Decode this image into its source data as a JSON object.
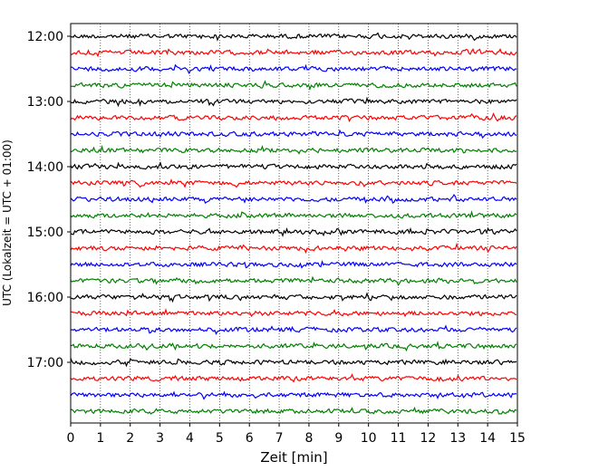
{
  "chart_data": {
    "type": "line",
    "title": "",
    "xlabel": "Zeit  [min]",
    "ylabel": "UTC (Lokalzeit = UTC + 01:00)",
    "xlim": [
      0,
      15
    ],
    "x_ticks": [
      "0",
      "1",
      "2",
      "3",
      "4",
      "5",
      "6",
      "7",
      "8",
      "9",
      "10",
      "11",
      "12",
      "13",
      "14",
      "15"
    ],
    "x_tick_values": [
      0,
      1,
      2,
      3,
      4,
      5,
      6,
      7,
      8,
      9,
      10,
      11,
      12,
      13,
      14,
      15
    ],
    "y_tick_labels": [
      "12:00",
      "13:00",
      "14:00",
      "15:00",
      "16:00",
      "17:00"
    ],
    "grid": "vertical dotted",
    "start_hour": "12:00",
    "row_interval_minutes": 15,
    "row_count": 24,
    "colors": [
      "#000000",
      "#ff0000",
      "#0000ff",
      "#008000"
    ],
    "series_note": "seismic helicorder traces, one row per 15 minutes, colours cycle black/red/blue/green"
  }
}
